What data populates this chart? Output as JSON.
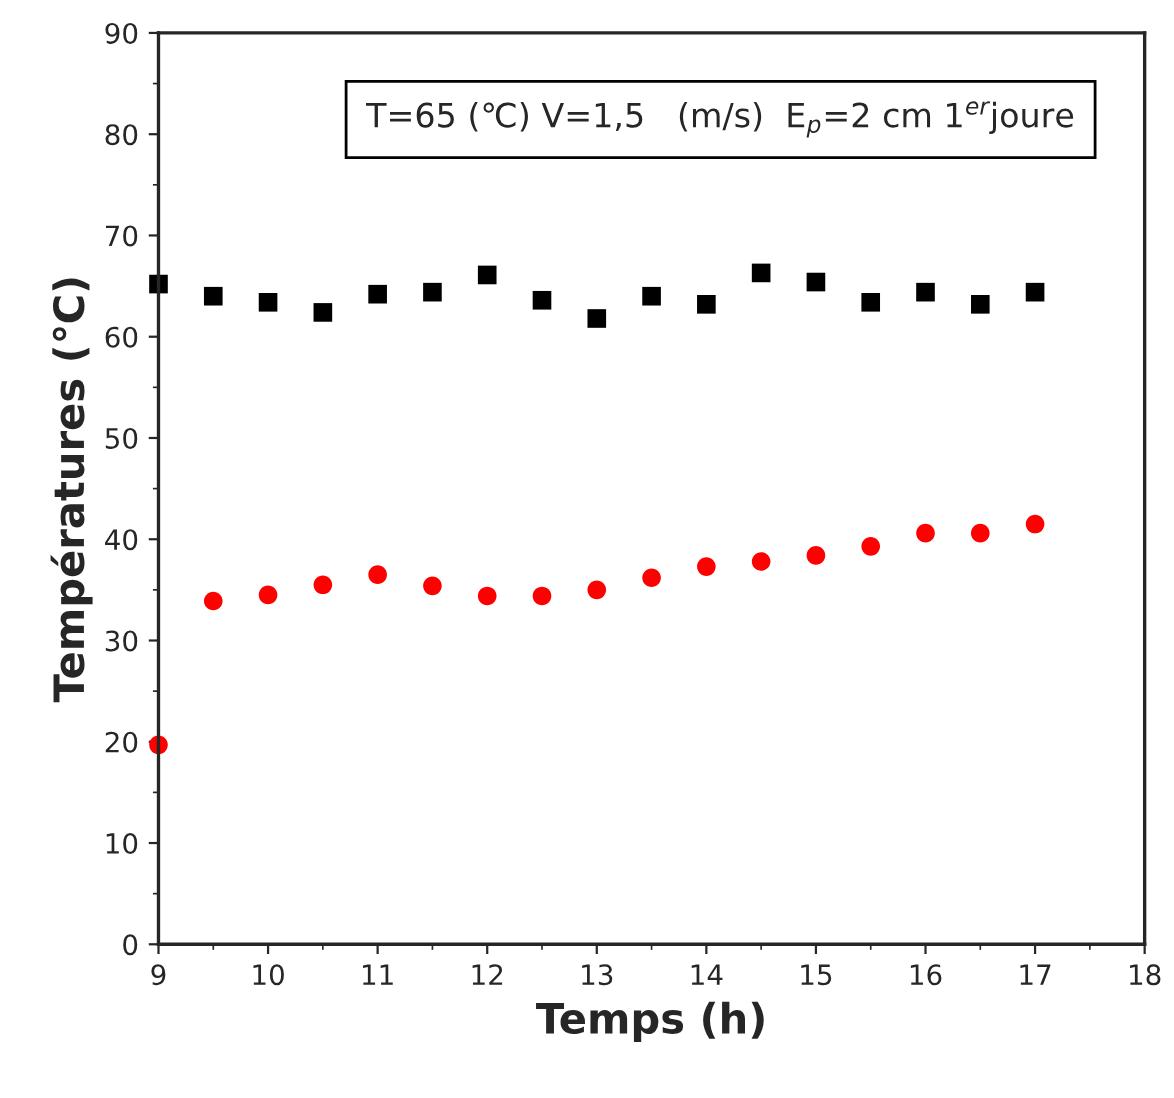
{
  "chart_data": {
    "type": "scatter",
    "xlabel": "Temps (h)",
    "ylabel": "Températures (℃)",
    "annotations": [
      "T=65 (℃) V=1,5   (m/s)  E$_{p}$=2 cm 1$^{er}$joure"
    ],
    "x": [
      9,
      9.5,
      10,
      10.5,
      11,
      11.5,
      12,
      12.5,
      13,
      13.5,
      14,
      14.5,
      15,
      15.5,
      16,
      16.5,
      17
    ],
    "series": [
      {
        "color": "#000000",
        "marker": "square",
        "values": [
          65.2,
          64.0,
          63.4,
          62.4,
          64.2,
          64.4,
          66.1,
          63.6,
          61.8,
          64.0,
          63.2,
          66.3,
          65.4,
          63.4,
          64.4,
          63.2,
          64.4
        ]
      },
      {
        "color": "#ff0000",
        "marker": "circle",
        "values": [
          19.7,
          33.9,
          34.5,
          35.5,
          36.5,
          35.4,
          34.4,
          34.4,
          35.0,
          36.2,
          37.3,
          37.8,
          38.4,
          39.3,
          40.6,
          40.6,
          41.5
        ]
      }
    ],
    "xlim": [
      9,
      18
    ],
    "ylim": [
      0,
      90
    ],
    "xticks": [
      9,
      10,
      11,
      12,
      13,
      14,
      15,
      16,
      17,
      18
    ],
    "yticks": [
      0,
      10,
      20,
      30,
      40,
      50,
      60,
      70,
      80,
      90
    ],
    "grid": false,
    "legend": false
  }
}
